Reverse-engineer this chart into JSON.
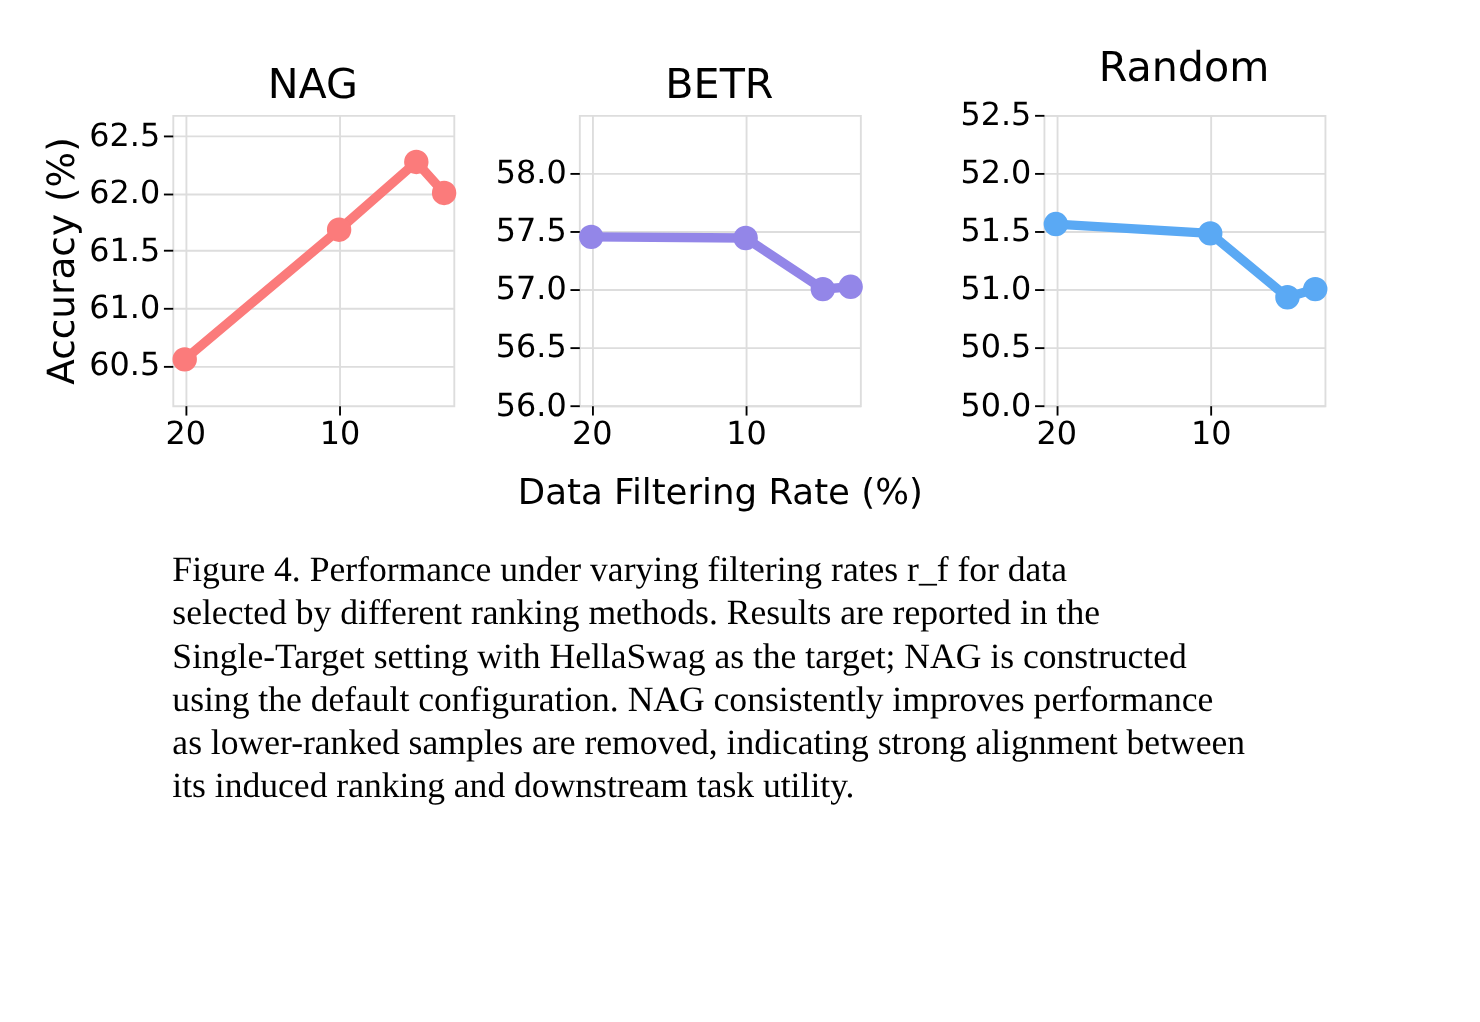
{
  "chart_data": [
    {
      "type": "line",
      "title": "NAG",
      "ylabel": "Accuracy (%)",
      "x": [
        20,
        10,
        5,
        3.2
      ],
      "xlim": [
        20.8,
        2.6
      ],
      "xticks": [
        20,
        10
      ],
      "ylim": [
        60.15,
        62.68
      ],
      "yticks": [
        {
          "value": 60.5,
          "label": "60.5"
        },
        {
          "value": 61,
          "label": "61.0"
        },
        {
          "value": 61.5,
          "label": "61.5"
        },
        {
          "value": 62,
          "label": "62.0"
        },
        {
          "value": 62.5,
          "label": "62.5"
        }
      ],
      "grid": true,
      "marker": "circle",
      "line_style": "solid",
      "series": [
        {
          "color": "#fb7b7b",
          "values": [
            60.55,
            61.68,
            62.27,
            62.0
          ]
        }
      ]
    },
    {
      "type": "line",
      "title": "BETR",
      "xlabel": "Data Filtering Rate (%)",
      "x": [
        20,
        10,
        5,
        3.2
      ],
      "xlim": [
        20.8,
        2.6
      ],
      "xticks": [
        20,
        10
      ],
      "ylim": [
        56.0,
        58.5
      ],
      "yticks": [
        {
          "value": 56,
          "label": "56.0"
        },
        {
          "value": 56.5,
          "label": "56.5"
        },
        {
          "value": 57,
          "label": "57.0"
        },
        {
          "value": 57.5,
          "label": "57.5"
        },
        {
          "value": 58,
          "label": "58.0"
        }
      ],
      "grid": true,
      "marker": "circle",
      "line_style": "solid",
      "series": [
        {
          "color": "#9386e8",
          "values": [
            57.45,
            57.44,
            57.0,
            57.02
          ]
        }
      ]
    },
    {
      "type": "line",
      "title": "Random",
      "x": [
        20,
        10,
        5,
        3.2
      ],
      "xlim": [
        20.8,
        2.6
      ],
      "xticks": [
        20,
        10
      ],
      "ylim": [
        50.0,
        52.5
      ],
      "yticks": [
        {
          "value": 50,
          "label": "50.0"
        },
        {
          "value": 50.5,
          "label": "50.5"
        },
        {
          "value": 51,
          "label": "51.0"
        },
        {
          "value": 51.5,
          "label": "51.5"
        },
        {
          "value": 52,
          "label": "52.0"
        },
        {
          "value": 52.5,
          "label": "52.5"
        }
      ],
      "grid": true,
      "marker": "circle",
      "line_style": "solid",
      "annotations": [
        "Figure 4. Performance under varying filtering rates r_f for data selected by different ranking methods. Results are reported in the Single-Target setting with HellaSwag as the target; NAG is constructed using the default configuration. NAG consistently improves performance as lower-ranked samples are removed, indicating strong alignment between its induced ranking and downstream task utility."
      ],
      "series": [
        {
          "color": "#5aa9f4",
          "values": [
            51.56,
            51.48,
            50.93,
            51.0
          ]
        }
      ]
    }
  ]
}
